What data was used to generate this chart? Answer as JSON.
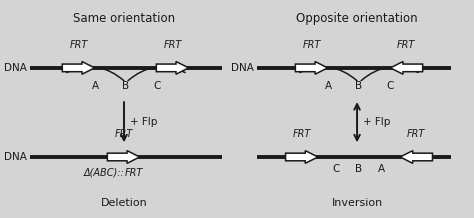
{
  "bg_color": "#d4d4d4",
  "title_same": "Same orientation",
  "title_opp": "Opposite orientation",
  "label_deletion": "Deletion",
  "label_inversion": "Inversion",
  "label_dna": "DNA",
  "label_flp": "+ Flp",
  "label_abc_delta": "Δ(ABC)::",
  "label_frt_italic": "FRT",
  "text_color": "#1a1a1a",
  "arrow_fc": "#ffffff",
  "arrow_ec": "#1a1a1a",
  "dna_color": "#1a1a1a",
  "font_size_title": 8.5,
  "font_size_body": 7.5,
  "font_size_frt": 7.0,
  "font_size_abc": 7.0,
  "font_size_dna": 7.5,
  "font_size_label": 8.0
}
